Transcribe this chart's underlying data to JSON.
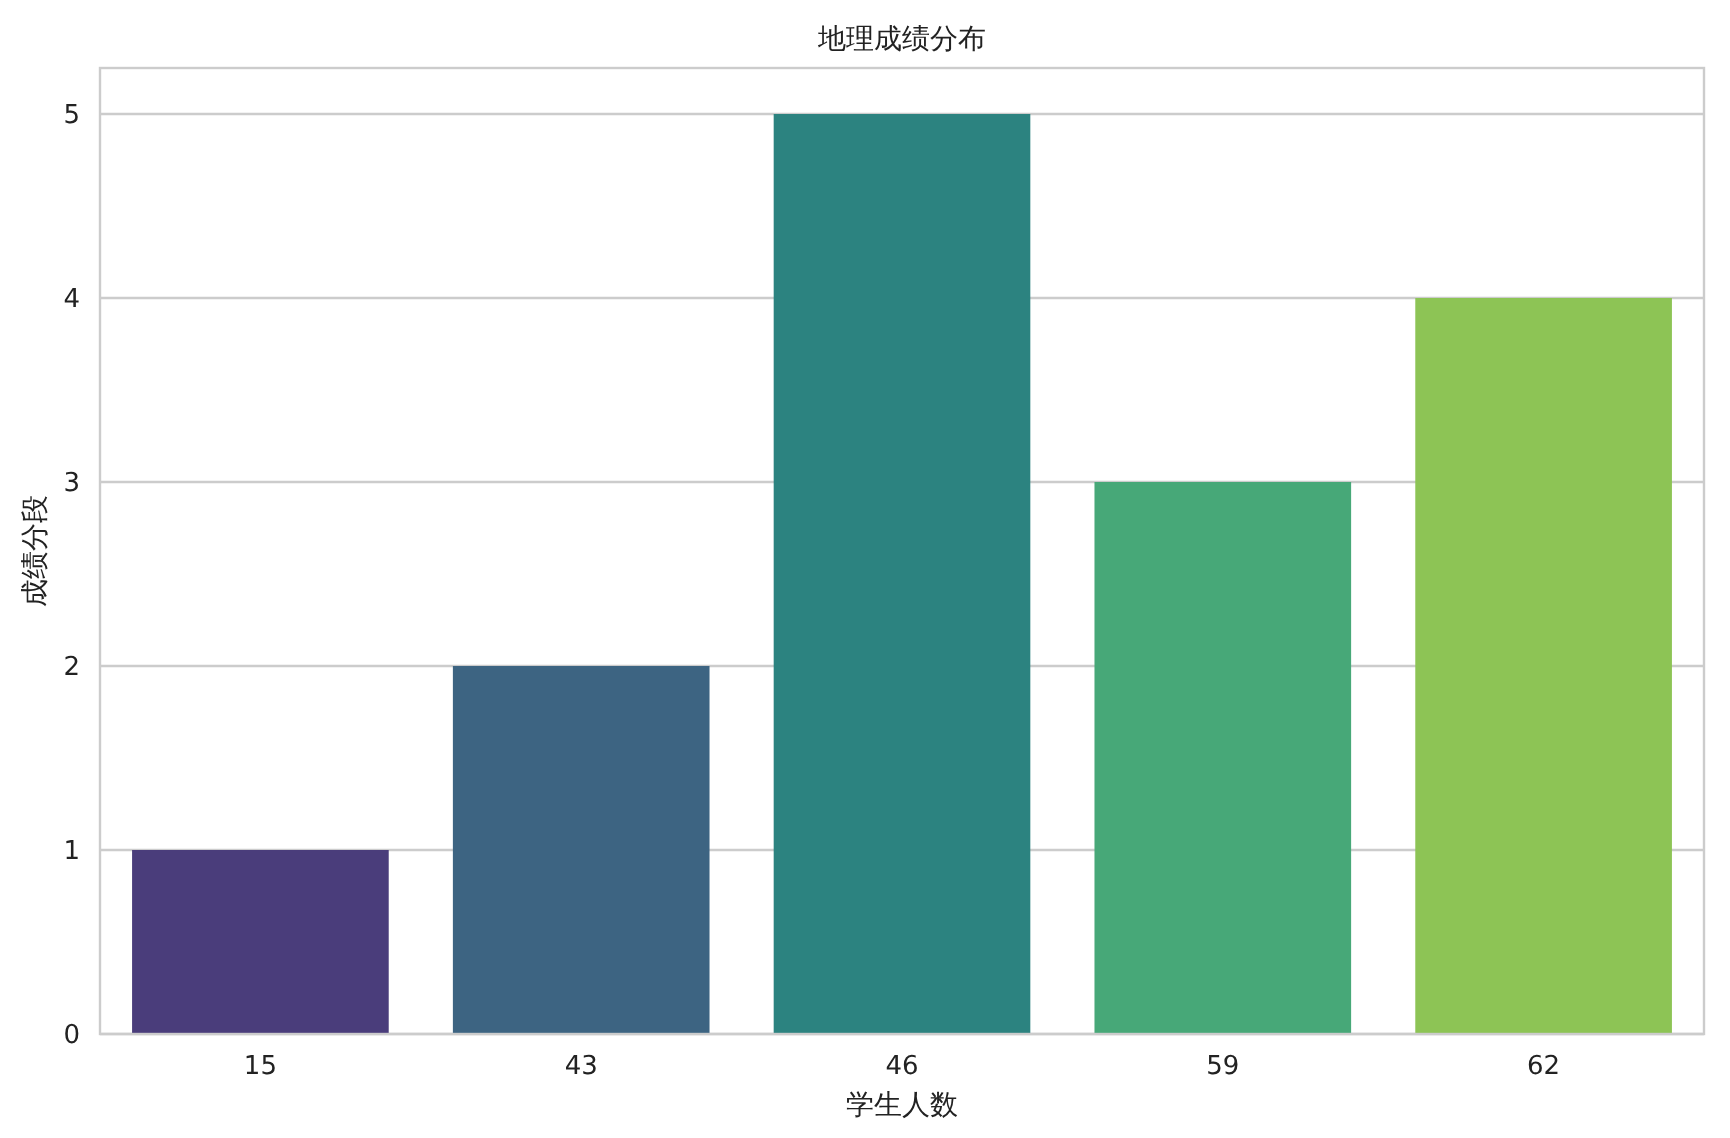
{
  "chart_data": {
    "type": "bar",
    "title": "地理成绩分布",
    "xlabel": "学生人数",
    "ylabel": "成绩分段",
    "categories": [
      "15",
      "43",
      "46",
      "59",
      "62"
    ],
    "values": [
      1,
      2,
      5,
      3,
      4
    ],
    "colors": [
      "#4a3d7b",
      "#3d6482",
      "#2c8380",
      "#47a878",
      "#8dc455"
    ],
    "ylim": [
      0,
      5.25
    ],
    "yticks": [
      0,
      1,
      2,
      3,
      4,
      5
    ],
    "grid": "y"
  }
}
